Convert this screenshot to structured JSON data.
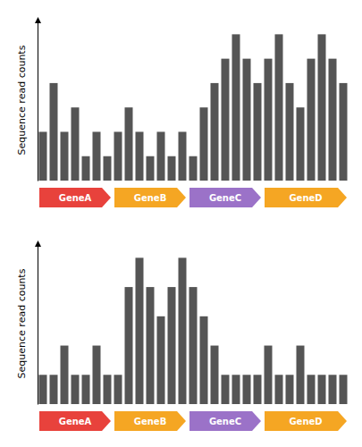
{
  "chart_data": [
    {
      "type": "bar",
      "y_label": "Sequence read counts",
      "categories": [
        null,
        null,
        null,
        null,
        null,
        null,
        null,
        null,
        null,
        null,
        null,
        null,
        null,
        null,
        null,
        null,
        null,
        null,
        null,
        null,
        null,
        null,
        null,
        null,
        null,
        null,
        null,
        null,
        null
      ],
      "values": [
        2,
        4,
        2,
        3,
        1,
        2,
        1,
        2,
        3,
        2,
        1,
        2,
        1,
        2,
        1,
        3,
        4,
        5,
        6,
        5,
        4,
        5,
        6,
        4,
        3,
        5,
        6,
        5,
        4
      ],
      "color": "#555555",
      "ylim": [
        0,
        6.6
      ],
      "tick_labels": false,
      "grid": false,
      "annotations": [
        {
          "text": "GeneA",
          "color": "#E8423C"
        },
        {
          "text": "GeneB",
          "color": "#F5A623"
        },
        {
          "text": "GeneC",
          "color": "#9B72C8"
        },
        {
          "text": "GeneD",
          "color": "#F5A623"
        }
      ]
    },
    {
      "type": "bar",
      "y_label": "Sequence read counts",
      "categories": [
        null,
        null,
        null,
        null,
        null,
        null,
        null,
        null,
        null,
        null,
        null,
        null,
        null,
        null,
        null,
        null,
        null,
        null,
        null,
        null,
        null,
        null,
        null,
        null,
        null,
        null,
        null,
        null,
        null
      ],
      "values": [
        1,
        1,
        2,
        1,
        1,
        2,
        1,
        1,
        4,
        5,
        4,
        3,
        4,
        5,
        4,
        3,
        2,
        1,
        1,
        1,
        1,
        2,
        1,
        1,
        2,
        1,
        1,
        1,
        1
      ],
      "color": "#555555",
      "ylim": [
        0,
        5.5
      ],
      "tick_labels": false,
      "grid": false,
      "annotations": [
        {
          "text": "GeneA",
          "color": "#E8423C"
        },
        {
          "text": "GeneB",
          "color": "#F5A623"
        },
        {
          "text": "GeneC",
          "color": "#9B72C8"
        },
        {
          "text": "GeneD",
          "color": "#F5A623"
        }
      ]
    }
  ]
}
